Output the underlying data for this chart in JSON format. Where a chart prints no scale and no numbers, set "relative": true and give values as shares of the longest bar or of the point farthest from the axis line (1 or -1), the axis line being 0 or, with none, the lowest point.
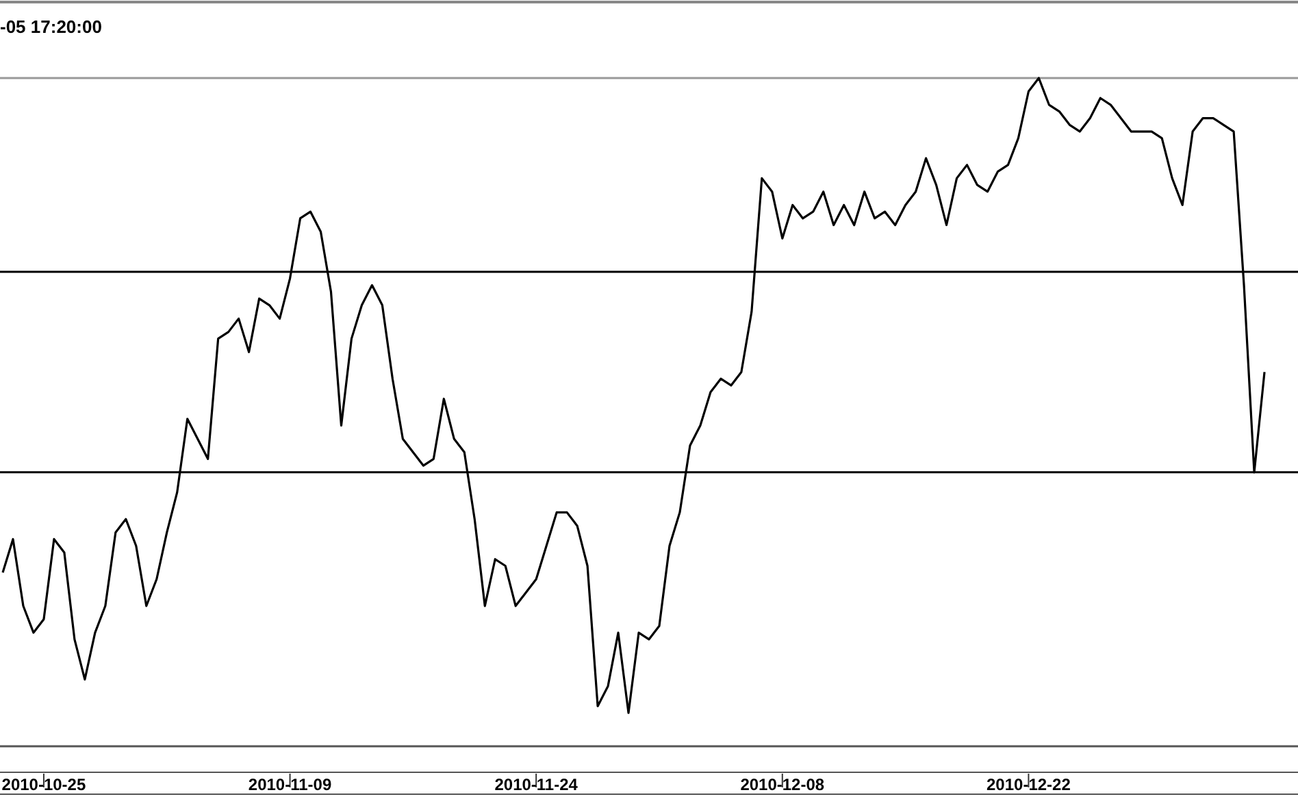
{
  "chart_data": {
    "type": "line",
    "title": "-05 17:20:00",
    "relative": true,
    "categories": [
      null,
      null,
      null,
      null,
      "2010-10-25",
      null,
      null,
      null,
      null,
      null,
      null,
      null,
      null,
      null,
      null,
      null,
      null,
      null,
      null,
      null,
      null,
      null,
      null,
      null,
      null,
      null,
      null,
      null,
      "2010-11-09",
      null,
      null,
      null,
      null,
      null,
      null,
      null,
      null,
      null,
      null,
      null,
      null,
      null,
      null,
      null,
      null,
      null,
      null,
      null,
      null,
      null,
      null,
      null,
      "2010-11-24",
      null,
      null,
      null,
      null,
      null,
      null,
      null,
      null,
      null,
      null,
      null,
      null,
      null,
      null,
      null,
      null,
      null,
      null,
      null,
      null,
      null,
      null,
      null,
      "2010-12-08",
      null,
      null,
      null,
      null,
      null,
      null,
      null,
      null,
      null,
      null,
      null,
      null,
      null,
      null,
      null,
      null,
      null,
      null,
      null,
      null,
      null,
      null,
      null,
      "2010-12-22",
      null,
      null,
      null,
      null,
      null,
      null,
      null,
      null,
      null,
      null,
      null,
      null,
      null,
      null,
      null,
      null,
      null,
      null,
      null,
      null,
      null,
      null,
      null,
      null,
      null,
      null
    ],
    "series": [
      {
        "color": "#000000",
        "values": [
          0.26,
          0.31,
          0.21,
          0.17,
          0.19,
          0.31,
          0.29,
          0.16,
          0.1,
          0.17,
          0.21,
          0.32,
          0.34,
          0.3,
          0.21,
          0.25,
          0.32,
          0.38,
          0.49,
          0.46,
          0.43,
          0.61,
          0.62,
          0.64,
          0.59,
          0.67,
          0.66,
          0.64,
          0.7,
          0.79,
          0.8,
          0.77,
          0.68,
          0.48,
          0.61,
          0.66,
          0.69,
          0.66,
          0.55,
          0.46,
          0.44,
          0.42,
          0.43,
          0.52,
          0.46,
          0.44,
          0.34,
          0.21,
          0.28,
          0.27,
          0.21,
          0.23,
          0.25,
          0.3,
          0.35,
          0.35,
          0.33,
          0.27,
          0.06,
          0.09,
          0.17,
          0.05,
          0.17,
          0.16,
          0.18,
          0.3,
          0.35,
          0.45,
          0.48,
          0.53,
          0.55,
          0.54,
          0.56,
          0.65,
          0.85,
          0.83,
          0.76,
          0.81,
          0.79,
          0.8,
          0.83,
          0.78,
          0.81,
          0.78,
          0.83,
          0.79,
          0.8,
          0.78,
          0.81,
          0.83,
          0.88,
          0.84,
          0.78,
          0.85,
          0.87,
          0.84,
          0.83,
          0.86,
          0.87,
          0.91,
          0.98,
          1,
          0.96,
          0.95,
          0.93,
          0.92,
          0.94,
          0.97,
          0.96,
          0.94,
          0.92,
          0.92,
          0.92,
          0.91,
          0.85,
          0.81,
          0.92,
          0.94,
          0.94,
          0.93,
          0.92,
          0.69,
          0.41,
          0.56,
          null,
          null,
          null
        ]
      }
    ],
    "ref_lines": [
      {
        "axis": "y",
        "value": 1.0,
        "color": "#999999"
      },
      {
        "axis": "y",
        "value": 0.71,
        "color": "#000000"
      },
      {
        "axis": "y",
        "value": 0.41,
        "color": "#000000"
      }
    ],
    "legend": false,
    "line_style": "solid",
    "marker": "none"
  }
}
